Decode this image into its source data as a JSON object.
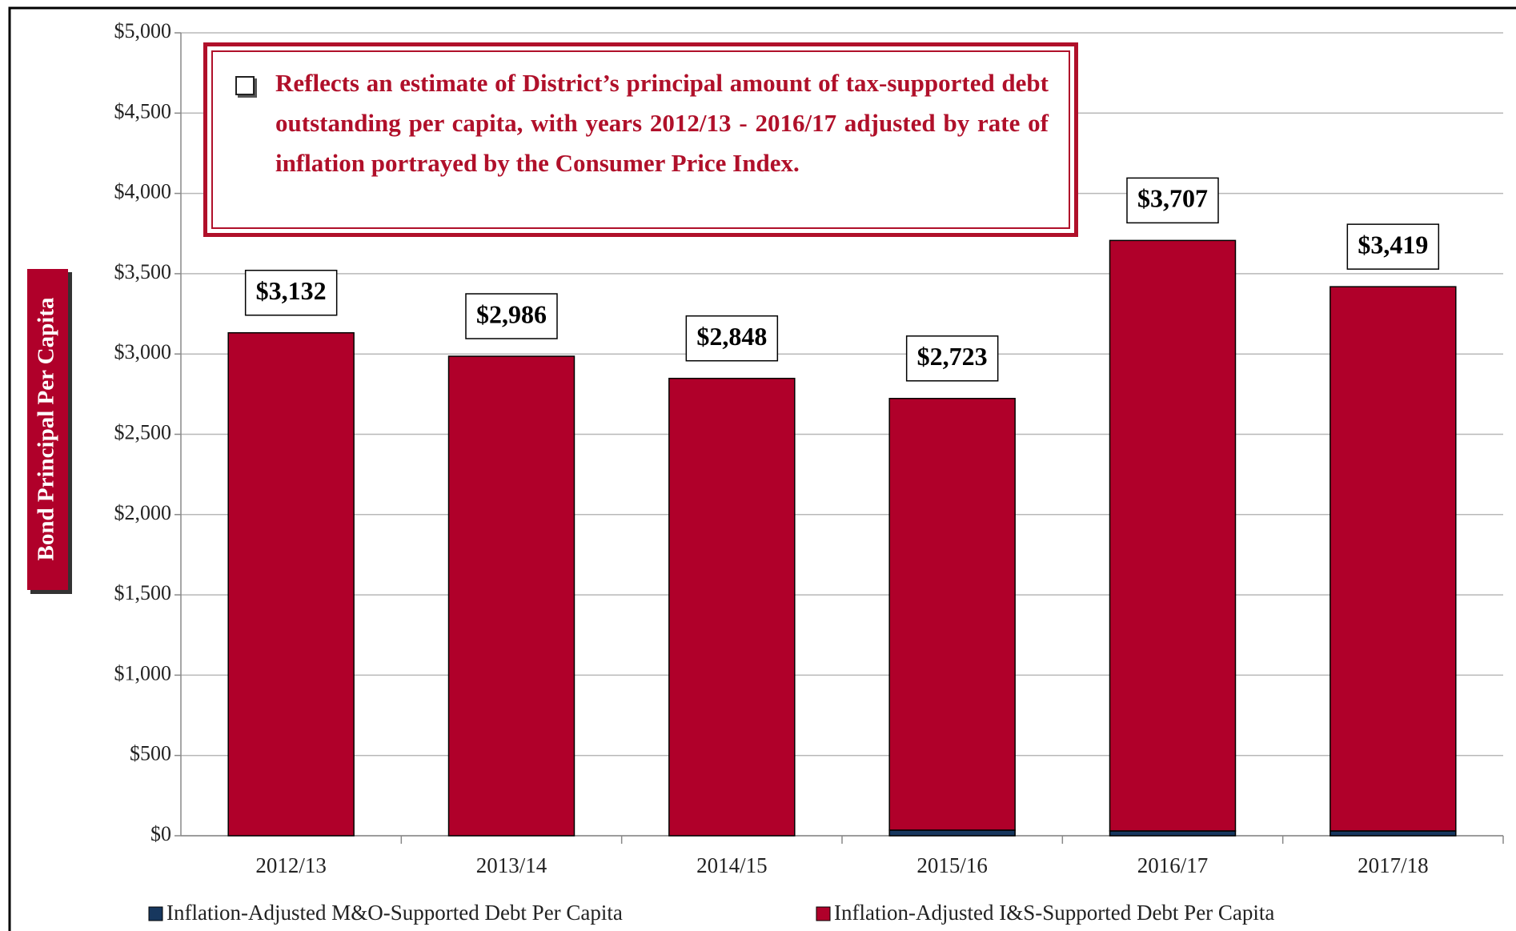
{
  "chart_data": {
    "type": "stacked_bar",
    "annotation": "Reflects an estimate of District’s principal amount of tax-supported debt outstanding per capita, with years 2012/13 - 2016/17 adjusted by rate of inflation portrayed by the Consumer Price Index.",
    "y_label": "Bond Principal Per Capita",
    "categories": [
      "2012/13",
      "2013/14",
      "2014/15",
      "2015/16",
      "2016/17",
      "2017/18"
    ],
    "series": [
      {
        "name": "Inflation-Adjusted M&O-Supported Debt Per Capita",
        "color": "#17375e",
        "values": [
          0,
          0,
          0,
          35,
          30,
          30
        ]
      },
      {
        "name": "Inflation-Adjusted I&S-Supported Debt Per Capita",
        "color": "#b0002a",
        "values": [
          3132,
          2986,
          2848,
          2688,
          3677,
          3389
        ]
      }
    ],
    "totals": [
      3132,
      2986,
      2848,
      2723,
      3707,
      3419
    ],
    "total_labels": [
      "$3,132",
      "$2,986",
      "$2,848",
      "$2,723",
      "$3,707",
      "$3,419"
    ],
    "ylim": [
      0,
      5000
    ],
    "yticks": [
      {
        "value": 0,
        "label": "$0"
      },
      {
        "value": 500,
        "label": "$500"
      },
      {
        "value": 1000,
        "label": "$1,000"
      },
      {
        "value": 1500,
        "label": "$1,500"
      },
      {
        "value": 2000,
        "label": "$2,000"
      },
      {
        "value": 2500,
        "label": "$2,500"
      },
      {
        "value": 3000,
        "label": "$3,000"
      },
      {
        "value": 3500,
        "label": "$3,500"
      },
      {
        "value": 4000,
        "label": "$4,000"
      },
      {
        "value": 4500,
        "label": "$4,500"
      },
      {
        "value": 5000,
        "label": "$5,000"
      }
    ],
    "grid": true,
    "legend": "bottom"
  }
}
